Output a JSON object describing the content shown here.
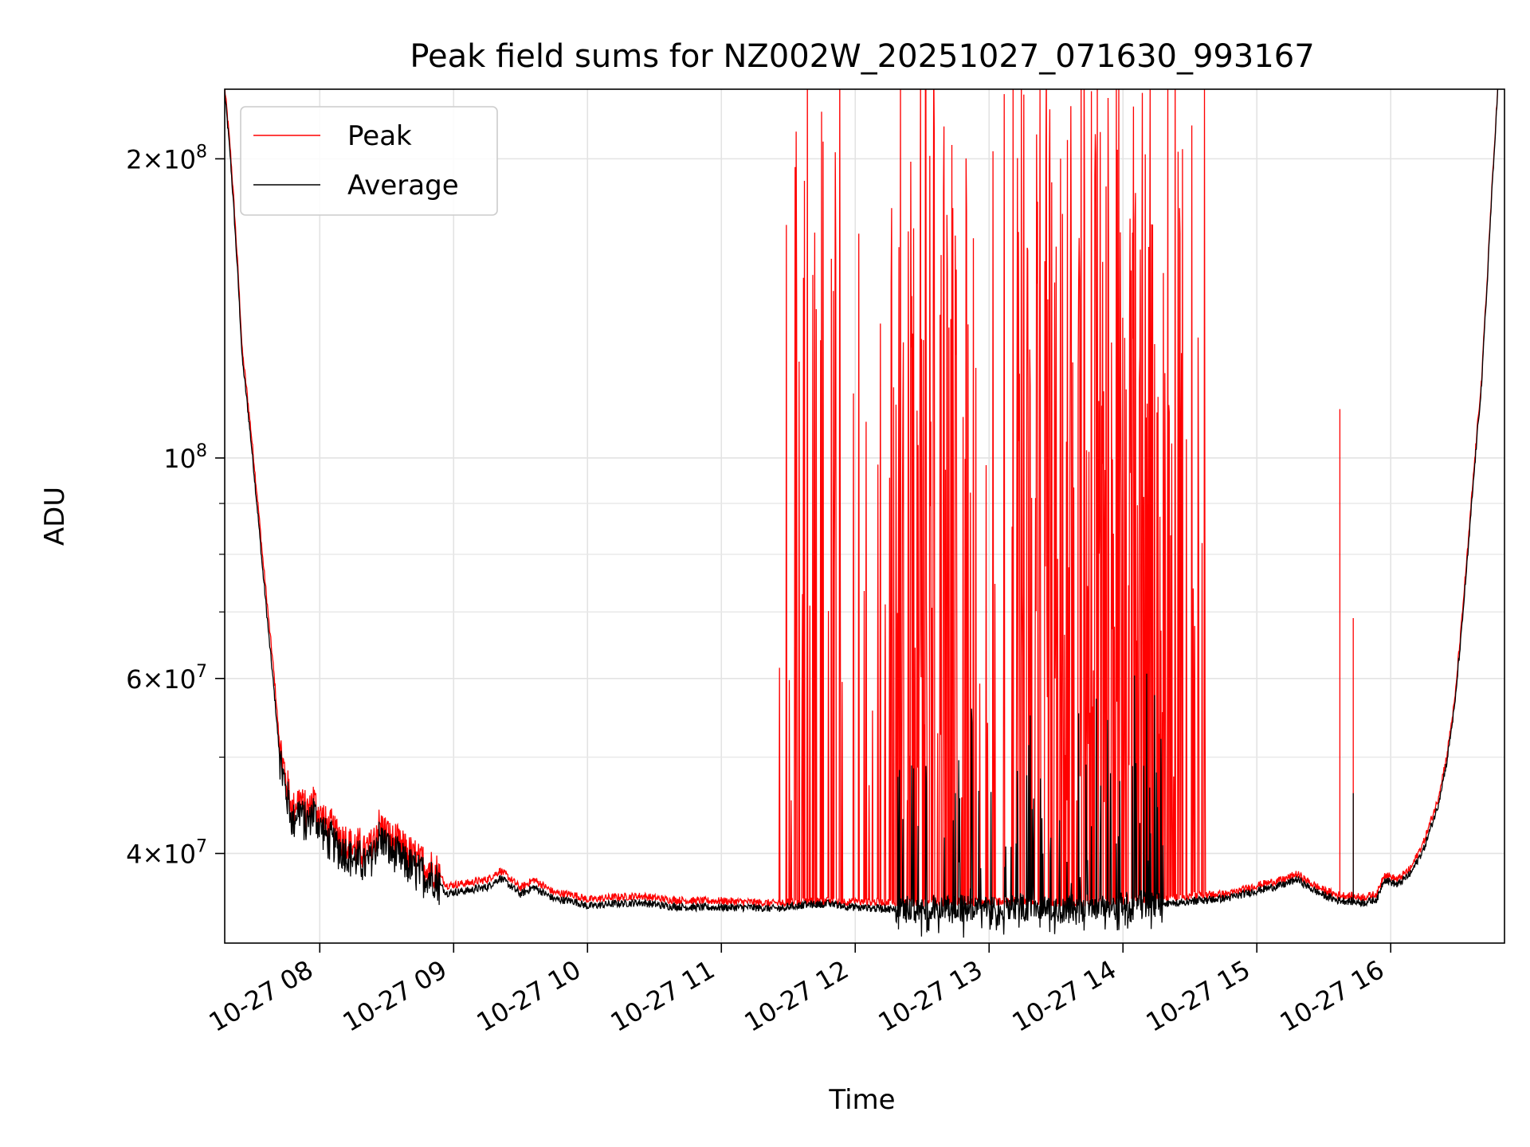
{
  "chart_data": {
    "type": "line",
    "title": "Peak field sums for NZ002W_20251027_071630_993167",
    "xlabel": "Time",
    "ylabel": "ADU",
    "yscale": "log",
    "ylim": [
      32500000,
      235000000
    ],
    "xlim_hours": [
      7.29,
      16.85
    ],
    "x_tick_labels": [
      "10-27 08",
      "10-27 09",
      "10-27 10",
      "10-27 11",
      "10-27 12",
      "10-27 13",
      "10-27 14",
      "10-27 15",
      "10-27 16"
    ],
    "x_tick_hours": [
      8,
      9,
      10,
      11,
      12,
      13,
      14,
      15,
      16
    ],
    "y_tick_labels": [
      {
        "value": 40000000,
        "base": "4×10",
        "exp": "7"
      },
      {
        "value": 60000000,
        "base": "6×10",
        "exp": "7"
      },
      {
        "value": 100000000,
        "base": "10",
        "exp": "8"
      },
      {
        "value": 200000000,
        "base": "2×10",
        "exp": "8"
      }
    ],
    "y_minor_ticks": [
      50000000,
      70000000,
      80000000,
      90000000
    ],
    "grid": true,
    "legend_position": "upper-left",
    "series": [
      {
        "name": "Peak",
        "color": "#ff0000",
        "note": "baseline tracks Average slightly above it; dense spikes up to the top of the axis between 10-27 11:24 and 14:40, isolated spikes near 15:37 and 15:43",
        "points": [
          [
            7.29,
            235000000
          ],
          [
            7.33,
            205000000
          ],
          [
            7.37,
            170000000
          ],
          [
            7.42,
            128000000
          ],
          [
            7.48,
            108000000
          ],
          [
            7.52,
            95000000
          ],
          [
            7.57,
            80000000
          ],
          [
            7.62,
            68000000
          ],
          [
            7.66,
            60000000
          ],
          [
            7.7,
            51000000
          ],
          [
            7.75,
            47000000
          ],
          [
            7.8,
            44000000
          ],
          [
            7.85,
            45500000
          ],
          [
            7.9,
            43500000
          ],
          [
            7.95,
            45000000
          ],
          [
            8.05,
            42500000
          ],
          [
            8.15,
            41500000
          ],
          [
            8.25,
            40500000
          ],
          [
            8.35,
            40000000
          ],
          [
            8.45,
            42500000
          ],
          [
            8.55,
            41000000
          ],
          [
            8.65,
            40000000
          ],
          [
            8.75,
            39000000
          ],
          [
            8.85,
            38500000
          ],
          [
            8.95,
            37000000
          ],
          [
            9.1,
            37200000
          ],
          [
            9.25,
            37500000
          ],
          [
            9.35,
            38300000
          ],
          [
            9.5,
            36800000
          ],
          [
            9.6,
            37500000
          ],
          [
            9.75,
            36400000
          ],
          [
            9.9,
            36200000
          ],
          [
            10.0,
            35800000
          ],
          [
            10.2,
            36000000
          ],
          [
            10.4,
            36100000
          ],
          [
            10.6,
            35800000
          ],
          [
            10.8,
            35700000
          ],
          [
            11.0,
            35700000
          ],
          [
            11.2,
            35600000
          ],
          [
            11.4,
            35500000
          ],
          [
            11.6,
            35600000
          ],
          [
            11.8,
            35700000
          ],
          [
            12.0,
            35600000
          ],
          [
            12.2,
            35600000
          ],
          [
            12.4,
            35500000
          ],
          [
            12.6,
            35500000
          ],
          [
            12.8,
            35600000
          ],
          [
            13.0,
            35600000
          ],
          [
            13.2,
            35700000
          ],
          [
            13.4,
            35600000
          ],
          [
            13.6,
            35500000
          ],
          [
            13.8,
            35600000
          ],
          [
            14.0,
            35700000
          ],
          [
            14.2,
            35800000
          ],
          [
            14.4,
            36000000
          ],
          [
            14.6,
            36200000
          ],
          [
            14.8,
            36300000
          ],
          [
            15.0,
            37000000
          ],
          [
            15.2,
            37500000
          ],
          [
            15.3,
            38000000
          ],
          [
            15.4,
            37200000
          ],
          [
            15.5,
            36600000
          ],
          [
            15.6,
            36200000
          ],
          [
            15.7,
            36100000
          ],
          [
            15.8,
            36000000
          ],
          [
            15.9,
            36300000
          ],
          [
            15.95,
            38000000
          ],
          [
            16.05,
            37500000
          ],
          [
            16.15,
            38500000
          ],
          [
            16.25,
            41000000
          ],
          [
            16.35,
            45000000
          ],
          [
            16.42,
            50000000
          ],
          [
            16.48,
            57000000
          ],
          [
            16.53,
            68000000
          ],
          [
            16.58,
            82000000
          ],
          [
            16.63,
            100000000
          ],
          [
            16.68,
            120000000
          ],
          [
            16.72,
            150000000
          ],
          [
            16.77,
            200000000
          ],
          [
            16.8,
            235000000
          ]
        ],
        "spike_windows_hours": [
          [
            11.4,
            14.68
          ]
        ],
        "isolated_spikes": [
          [
            15.62,
            112000000
          ],
          [
            15.72,
            69000000
          ]
        ]
      },
      {
        "name": "Average",
        "color": "#000000",
        "note": "smooth baseline with moderate noise; larger dips and excursions (up to ~6e7) in the 12:20–14:20 region",
        "points": [
          [
            7.29,
            233000000
          ],
          [
            7.33,
            202000000
          ],
          [
            7.37,
            167000000
          ],
          [
            7.42,
            126000000
          ],
          [
            7.48,
            106000000
          ],
          [
            7.52,
            93000000
          ],
          [
            7.57,
            78000000
          ],
          [
            7.62,
            66000000
          ],
          [
            7.66,
            58000000
          ],
          [
            7.7,
            50000000
          ],
          [
            7.75,
            46000000
          ],
          [
            7.8,
            43000000
          ],
          [
            7.85,
            44500000
          ],
          [
            7.9,
            42500000
          ],
          [
            7.95,
            44000000
          ],
          [
            8.05,
            41500000
          ],
          [
            8.15,
            40500000
          ],
          [
            8.25,
            39500000
          ],
          [
            8.35,
            39000000
          ],
          [
            8.45,
            41500000
          ],
          [
            8.55,
            40000000
          ],
          [
            8.65,
            39000000
          ],
          [
            8.75,
            38200000
          ],
          [
            8.85,
            37800000
          ],
          [
            8.95,
            36500000
          ],
          [
            9.1,
            36700000
          ],
          [
            9.25,
            37000000
          ],
          [
            9.35,
            37800000
          ],
          [
            9.5,
            36400000
          ],
          [
            9.6,
            37000000
          ],
          [
            9.75,
            36000000
          ],
          [
            9.9,
            35800000
          ],
          [
            10.0,
            35400000
          ],
          [
            10.2,
            35600000
          ],
          [
            10.4,
            35700000
          ],
          [
            10.6,
            35400000
          ],
          [
            10.8,
            35300000
          ],
          [
            11.0,
            35300000
          ],
          [
            11.2,
            35300000
          ],
          [
            11.4,
            35200000
          ],
          [
            11.6,
            35500000
          ],
          [
            11.8,
            35600000
          ],
          [
            12.0,
            35300000
          ],
          [
            12.2,
            35200000
          ],
          [
            12.4,
            35100000
          ],
          [
            12.6,
            35200000
          ],
          [
            12.8,
            35200000
          ],
          [
            13.0,
            35300000
          ],
          [
            13.2,
            35400000
          ],
          [
            13.4,
            35200000
          ],
          [
            13.6,
            35200000
          ],
          [
            13.8,
            35300000
          ],
          [
            14.0,
            35400000
          ],
          [
            14.2,
            35500000
          ],
          [
            14.4,
            35700000
          ],
          [
            14.6,
            35900000
          ],
          [
            14.8,
            36100000
          ],
          [
            15.0,
            36700000
          ],
          [
            15.2,
            37200000
          ],
          [
            15.3,
            37700000
          ],
          [
            15.4,
            36900000
          ],
          [
            15.5,
            36300000
          ],
          [
            15.6,
            35900000
          ],
          [
            15.7,
            35800000
          ],
          [
            15.8,
            35700000
          ],
          [
            15.9,
            36000000
          ],
          [
            15.95,
            37700000
          ],
          [
            16.05,
            37200000
          ],
          [
            16.15,
            38200000
          ],
          [
            16.25,
            40500000
          ],
          [
            16.35,
            44500000
          ],
          [
            16.42,
            49500000
          ],
          [
            16.48,
            56500000
          ],
          [
            16.53,
            67000000
          ],
          [
            16.58,
            81000000
          ],
          [
            16.63,
            99000000
          ],
          [
            16.68,
            119000000
          ],
          [
            16.72,
            149000000
          ],
          [
            16.77,
            199000000
          ],
          [
            16.8,
            235000000
          ]
        ],
        "noisy_window_hours": [
          [
            12.3,
            14.3
          ]
        ],
        "max_excursion": 61000000
      }
    ]
  }
}
